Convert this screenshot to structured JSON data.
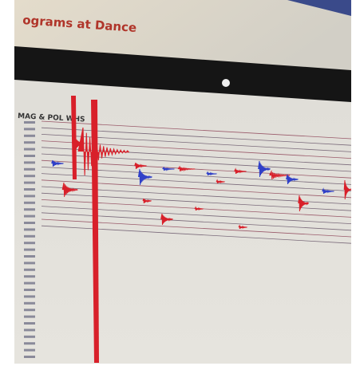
{
  "header": {
    "title": "ograms at Dance"
  },
  "panel": {
    "label": "MAG & POL WHS"
  }
}
